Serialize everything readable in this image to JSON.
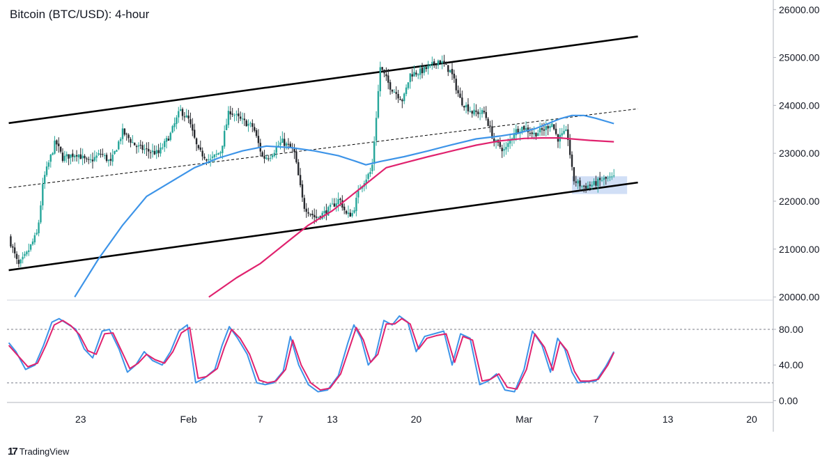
{
  "chart_title": "Bitcoin (BTC/USD): 4-hour",
  "brand": {
    "icon": "tradingview-logo-icon",
    "glyph": "17",
    "label": "TradingView"
  },
  "colors": {
    "up_candle": "#26a69a",
    "down_candle": "#26282d",
    "sma_fast": "#3d94e8",
    "sma_slow": "#e0226e",
    "stoch_k": "#3d94e8",
    "stoch_d": "#e0226e",
    "channel": "#000000",
    "highlight": "#c9d9f5"
  },
  "chart_data": [
    {
      "type": "candlestick",
      "title": "Bitcoin (BTC/USD): 4-hour",
      "ylim": [
        19950,
        26200
      ],
      "y_ticks": [
        "26000.00",
        "25000.00",
        "24000.00",
        "23000.00",
        "22000.00",
        "21000.00",
        "20000.00"
      ],
      "y_tick_values": [
        26000,
        25000,
        24000,
        23000,
        22000,
        21000,
        20000
      ],
      "x_ticks": [
        "23",
        "Feb",
        "7",
        "13",
        "20",
        "Mar",
        "7",
        "13",
        "20"
      ],
      "x_tick_values": [
        23,
        32,
        38,
        44,
        51,
        60,
        66,
        72,
        79
      ],
      "x_unit": "days since 31 Dec 2022 (Jan 23 = 23, Feb 1 = 32, Mar 1 = 60)",
      "x_range": [
        16.85,
        80.8
      ],
      "price_path": [
        [
          17.0,
          21250
        ],
        [
          17.8,
          20650
        ],
        [
          18.5,
          20900
        ],
        [
          19.4,
          21350
        ],
        [
          19.9,
          22450
        ],
        [
          20.9,
          23250
        ],
        [
          21.5,
          22900
        ],
        [
          22.7,
          23000
        ],
        [
          23.6,
          22800
        ],
        [
          24.7,
          23000
        ],
        [
          25.5,
          22800
        ],
        [
          26.5,
          23450
        ],
        [
          27.6,
          23150
        ],
        [
          28.6,
          23050
        ],
        [
          29.5,
          23000
        ],
        [
          30.5,
          23400
        ],
        [
          31.3,
          23900
        ],
        [
          32.0,
          23700
        ],
        [
          32.8,
          23050
        ],
        [
          33.8,
          22850
        ],
        [
          34.7,
          23050
        ],
        [
          35.4,
          23900
        ],
        [
          36.3,
          23700
        ],
        [
          37.4,
          23550
        ],
        [
          38.2,
          22900
        ],
        [
          38.8,
          22950
        ],
        [
          39.8,
          23250
        ],
        [
          40.8,
          23050
        ],
        [
          41.6,
          21900
        ],
        [
          42.6,
          21650
        ],
        [
          43.6,
          21800
        ],
        [
          44.6,
          22050
        ],
        [
          45.2,
          21700
        ],
        [
          45.7,
          21750
        ],
        [
          46.3,
          22300
        ],
        [
          47.3,
          22650
        ],
        [
          48.0,
          24800
        ],
        [
          48.8,
          24400
        ],
        [
          49.9,
          24100
        ],
        [
          50.5,
          24650
        ],
        [
          51.3,
          24700
        ],
        [
          52.1,
          24800
        ],
        [
          52.9,
          24950
        ],
        [
          53.9,
          24700
        ],
        [
          54.7,
          24100
        ],
        [
          55.7,
          23850
        ],
        [
          56.7,
          23850
        ],
        [
          57.5,
          23250
        ],
        [
          58.4,
          23050
        ],
        [
          59.2,
          23450
        ],
        [
          59.9,
          23550
        ],
        [
          60.8,
          23400
        ],
        [
          61.7,
          23500
        ],
        [
          62.3,
          23650
        ],
        [
          62.8,
          23300
        ],
        [
          63.6,
          23450
        ],
        [
          64.1,
          22450
        ],
        [
          64.9,
          22300
        ],
        [
          65.8,
          22350
        ],
        [
          66.5,
          22450
        ],
        [
          67.5,
          22480
        ]
      ],
      "channel_upper": [
        [
          17.0,
          23630
        ],
        [
          69.5,
          25440
        ]
      ],
      "channel_lower": [
        [
          17.0,
          20560
        ],
        [
          69.5,
          22390
        ]
      ],
      "channel_mid": [
        [
          17.0,
          22280
        ],
        [
          69.5,
          23930
        ]
      ],
      "highlight_box": {
        "x": [
          64.0,
          68.6
        ],
        "y": [
          22150,
          22520
        ]
      },
      "sma_fast": [
        [
          22.5,
          20000
        ],
        [
          24.5,
          20800
        ],
        [
          26.5,
          21500
        ],
        [
          28.5,
          22100
        ],
        [
          30.5,
          22400
        ],
        [
          32.5,
          22700
        ],
        [
          34.5,
          22900
        ],
        [
          36.5,
          23050
        ],
        [
          38.5,
          23150
        ],
        [
          40.5,
          23120
        ],
        [
          42.5,
          23050
        ],
        [
          44.5,
          22950
        ],
        [
          46.0,
          22830
        ],
        [
          46.8,
          22760
        ],
        [
          48.0,
          22830
        ],
        [
          50.0,
          22930
        ],
        [
          52.0,
          23050
        ],
        [
          54.0,
          23180
        ],
        [
          56.0,
          23300
        ],
        [
          58.0,
          23360
        ],
        [
          59.5,
          23420
        ],
        [
          61.0,
          23520
        ],
        [
          62.0,
          23620
        ],
        [
          63.0,
          23720
        ],
        [
          64.0,
          23790
        ],
        [
          65.0,
          23790
        ],
        [
          66.0,
          23730
        ],
        [
          67.5,
          23620
        ]
      ],
      "sma_slow": [
        [
          33.7,
          20000
        ],
        [
          36.0,
          20400
        ],
        [
          38.0,
          20700
        ],
        [
          40.0,
          21100
        ],
        [
          42.0,
          21500
        ],
        [
          44.0,
          21800
        ],
        [
          46.0,
          22200
        ],
        [
          47.5,
          22500
        ],
        [
          48.5,
          22700
        ],
        [
          50.0,
          22800
        ],
        [
          52.0,
          22930
        ],
        [
          54.0,
          23050
        ],
        [
          56.0,
          23170
        ],
        [
          58.0,
          23260
        ],
        [
          60.0,
          23310
        ],
        [
          61.5,
          23320
        ],
        [
          63.0,
          23320
        ],
        [
          64.0,
          23300
        ],
        [
          65.5,
          23270
        ],
        [
          67.5,
          23240
        ]
      ]
    },
    {
      "type": "line",
      "title": "",
      "ylim": [
        -2,
        112
      ],
      "y_ticks": [
        "80.00",
        "40.00",
        "0.00"
      ],
      "y_tick_values": [
        80,
        40,
        0
      ],
      "levels": [
        80,
        20
      ],
      "series": [
        {
          "name": "",
          "values": [
            [
              17.0,
              65
            ],
            [
              17.6,
              55
            ],
            [
              18.4,
              35
            ],
            [
              19.2,
              40
            ],
            [
              19.9,
              62
            ],
            [
              20.6,
              88
            ],
            [
              21.2,
              92
            ],
            [
              21.9,
              86
            ],
            [
              22.6,
              80
            ],
            [
              23.3,
              58
            ],
            [
              24.0,
              48
            ],
            [
              24.8,
              78
            ],
            [
              25.4,
              80
            ],
            [
              26.2,
              58
            ],
            [
              26.9,
              32
            ],
            [
              27.6,
              40
            ],
            [
              28.3,
              55
            ],
            [
              29.0,
              45
            ],
            [
              29.8,
              40
            ],
            [
              30.5,
              55
            ],
            [
              31.2,
              78
            ],
            [
              31.9,
              85
            ],
            [
              32.6,
              20
            ],
            [
              33.3,
              25
            ],
            [
              34.2,
              35
            ],
            [
              34.8,
              62
            ],
            [
              35.4,
              83
            ],
            [
              36.1,
              70
            ],
            [
              36.9,
              52
            ],
            [
              37.7,
              20
            ],
            [
              38.4,
              18
            ],
            [
              39.1,
              20
            ],
            [
              39.9,
              33
            ],
            [
              40.5,
              72
            ],
            [
              41.2,
              40
            ],
            [
              42.0,
              18
            ],
            [
              42.8,
              10
            ],
            [
              43.6,
              12
            ],
            [
              44.5,
              28
            ],
            [
              45.3,
              65
            ],
            [
              45.8,
              85
            ],
            [
              46.4,
              70
            ],
            [
              47.0,
              40
            ],
            [
              47.6,
              50
            ],
            [
              48.3,
              90
            ],
            [
              49.0,
              85
            ],
            [
              49.6,
              95
            ],
            [
              50.3,
              88
            ],
            [
              51.0,
              55
            ],
            [
              51.7,
              72
            ],
            [
              52.5,
              75
            ],
            [
              53.3,
              78
            ],
            [
              54.0,
              40
            ],
            [
              54.7,
              75
            ],
            [
              55.5,
              70
            ],
            [
              56.3,
              18
            ],
            [
              57.0,
              22
            ],
            [
              57.7,
              30
            ],
            [
              58.4,
              12
            ],
            [
              59.2,
              10
            ],
            [
              60.0,
              35
            ],
            [
              60.7,
              78
            ],
            [
              61.5,
              62
            ],
            [
              62.2,
              32
            ],
            [
              62.8,
              70
            ],
            [
              63.4,
              58
            ],
            [
              64.0,
              32
            ],
            [
              64.5,
              20
            ],
            [
              65.2,
              21
            ],
            [
              66.0,
              22
            ],
            [
              66.8,
              38
            ],
            [
              67.5,
              55
            ]
          ]
        },
        {
          "name": "",
          "values": [
            [
              17.0,
              62
            ],
            [
              17.8,
              50
            ],
            [
              18.6,
              38
            ],
            [
              19.4,
              42
            ],
            [
              20.1,
              62
            ],
            [
              20.8,
              85
            ],
            [
              21.5,
              90
            ],
            [
              22.2,
              84
            ],
            [
              22.9,
              74
            ],
            [
              23.6,
              56
            ],
            [
              24.3,
              52
            ],
            [
              25.0,
              75
            ],
            [
              25.7,
              76
            ],
            [
              26.4,
              56
            ],
            [
              27.1,
              36
            ],
            [
              27.8,
              42
            ],
            [
              28.5,
              52
            ],
            [
              29.2,
              46
            ],
            [
              30.0,
              42
            ],
            [
              30.7,
              55
            ],
            [
              31.4,
              76
            ],
            [
              32.1,
              82
            ],
            [
              32.8,
              25
            ],
            [
              33.5,
              27
            ],
            [
              34.4,
              36
            ],
            [
              35.0,
              60
            ],
            [
              35.6,
              80
            ],
            [
              36.3,
              70
            ],
            [
              37.1,
              52
            ],
            [
              37.9,
              23
            ],
            [
              38.6,
              20
            ],
            [
              39.3,
              22
            ],
            [
              40.1,
              35
            ],
            [
              40.7,
              68
            ],
            [
              41.4,
              40
            ],
            [
              42.2,
              20
            ],
            [
              43.0,
              12
            ],
            [
              43.8,
              14
            ],
            [
              44.7,
              30
            ],
            [
              45.5,
              62
            ],
            [
              46.0,
              82
            ],
            [
              46.6,
              68
            ],
            [
              47.2,
              43
            ],
            [
              47.8,
              52
            ],
            [
              48.5,
              86
            ],
            [
              49.2,
              86
            ],
            [
              49.8,
              92
            ],
            [
              50.5,
              86
            ],
            [
              51.2,
              58
            ],
            [
              51.9,
              70
            ],
            [
              52.7,
              73
            ],
            [
              53.5,
              75
            ],
            [
              54.2,
              43
            ],
            [
              54.9,
              72
            ],
            [
              55.7,
              68
            ],
            [
              56.5,
              22
            ],
            [
              57.2,
              24
            ],
            [
              57.9,
              30
            ],
            [
              58.6,
              15
            ],
            [
              59.4,
              13
            ],
            [
              60.2,
              35
            ],
            [
              60.9,
              75
            ],
            [
              61.7,
              60
            ],
            [
              62.4,
              34
            ],
            [
              63.0,
              66
            ],
            [
              63.6,
              56
            ],
            [
              64.2,
              33
            ],
            [
              64.7,
              22
            ],
            [
              65.4,
              22
            ],
            [
              66.2,
              24
            ],
            [
              67.0,
              40
            ],
            [
              67.5,
              54
            ]
          ]
        }
      ]
    }
  ]
}
